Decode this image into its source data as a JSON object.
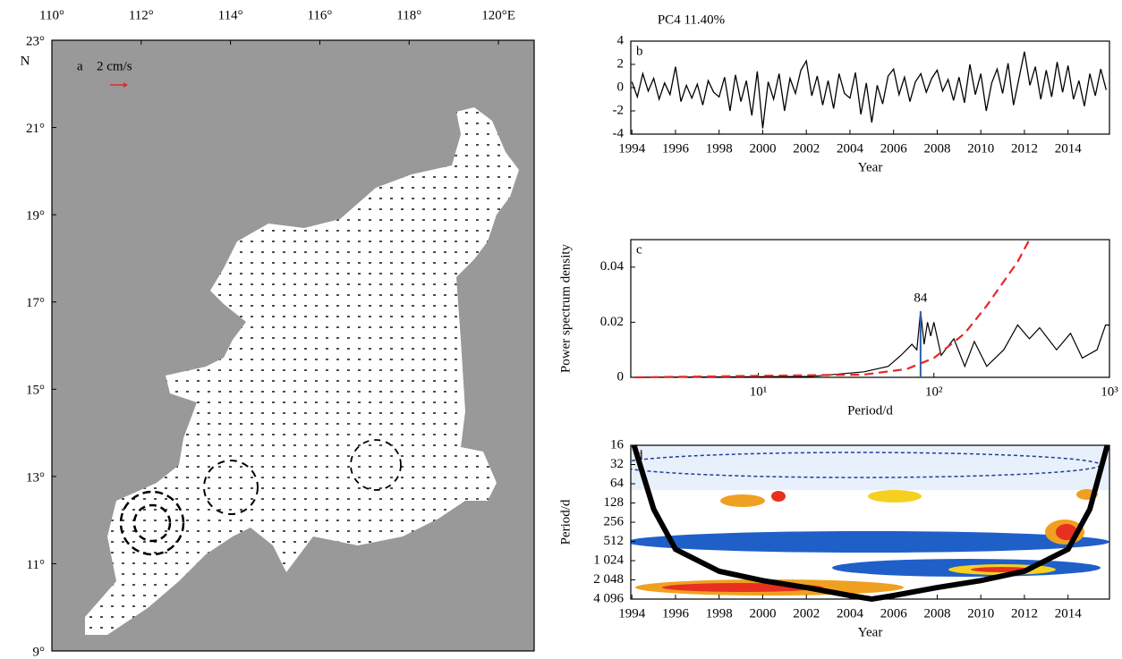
{
  "chart_data": [
    {
      "type": "map",
      "label": "a",
      "xlim": [
        110,
        120.8
      ],
      "ylim": [
        9,
        23
      ],
      "xticks": [
        {
          "value": 110,
          "label": "110°"
        },
        {
          "value": 112,
          "label": "112°"
        },
        {
          "value": 114,
          "label": "114°"
        },
        {
          "value": 116,
          "label": "116°"
        },
        {
          "value": 118,
          "label": "118°"
        },
        {
          "value": 120,
          "label": "120°E"
        }
      ],
      "yticks": [
        {
          "value": 23,
          "label": "23°"
        },
        {
          "value": 21,
          "label": "21°"
        },
        {
          "value": 19,
          "label": "19°"
        },
        {
          "value": 17,
          "label": "17°"
        },
        {
          "value": 15,
          "label": "15°"
        },
        {
          "value": 13,
          "label": "13°"
        },
        {
          "value": 11,
          "label": "11°"
        },
        {
          "value": 9,
          "label": "9°"
        }
      ],
      "y_hemisphere_label": "N",
      "scale_label": "2 cm/s",
      "scale_color": "#e8262a",
      "land_color": "#999999"
    },
    {
      "type": "line",
      "title": "PC4 11.40%",
      "label": "b",
      "x_label": "Year",
      "color": "#000000",
      "x": [
        1994,
        1994.25,
        1994.5,
        1994.75,
        1995,
        1995.25,
        1995.5,
        1995.75,
        1996,
        1996.25,
        1996.5,
        1996.75,
        1997,
        1997.25,
        1997.5,
        1997.75,
        1998,
        1998.25,
        1998.5,
        1998.75,
        1999,
        1999.25,
        1999.5,
        1999.75,
        2000,
        2000.25,
        2000.5,
        2000.75,
        2001,
        2001.25,
        2001.5,
        2001.75,
        2002,
        2002.25,
        2002.5,
        2002.75,
        2003,
        2003.25,
        2003.5,
        2003.75,
        2004,
        2004.25,
        2004.5,
        2004.75,
        2005,
        2005.25,
        2005.5,
        2005.75,
        2006,
        2006.25,
        2006.5,
        2006.75,
        2007,
        2007.25,
        2007.5,
        2007.75,
        2008,
        2008.25,
        2008.5,
        2008.75,
        2009,
        2009.25,
        2009.5,
        2009.75,
        2010,
        2010.25,
        2010.5,
        2010.75,
        2011,
        2011.25,
        2011.5,
        2011.75,
        2012,
        2012.25,
        2012.5,
        2012.75,
        2013,
        2013.25,
        2013.5,
        2013.75,
        2014,
        2014.25,
        2014.5,
        2014.75,
        2015,
        2015.25,
        2015.5,
        2015.75
      ],
      "values": [
        0.5,
        -0.8,
        1.2,
        -0.3,
        0.8,
        -1.0,
        0.4,
        -0.6,
        1.8,
        -1.2,
        0.2,
        -0.9,
        0.3,
        -1.5,
        0.6,
        -0.4,
        -0.8,
        0.9,
        -2.0,
        1.1,
        -1.2,
        0.6,
        -2.4,
        1.4,
        -3.5,
        0.5,
        -1.0,
        1.2,
        -2.0,
        0.8,
        -0.5,
        1.5,
        2.3,
        -0.7,
        1.0,
        -1.5,
        0.6,
        -1.8,
        1.2,
        -0.5,
        -0.9,
        1.3,
        -2.3,
        0.4,
        -3.0,
        0.2,
        -1.4,
        1.0,
        1.6,
        -0.6,
        0.9,
        -1.2,
        0.5,
        1.2,
        -0.4,
        0.8,
        1.5,
        -0.3,
        0.7,
        -1.1,
        0.9,
        -1.3,
        2.0,
        -0.6,
        1.2,
        -2.0,
        0.4,
        1.6,
        -0.5,
        2.1,
        -1.5,
        0.8,
        3.1,
        0.2,
        1.8,
        -1.0,
        1.5,
        -0.8,
        2.2,
        -0.4,
        1.9,
        -1.0,
        0.6,
        -1.6,
        1.2,
        -0.7,
        1.6,
        -0.2
      ],
      "xlim": [
        1993.95,
        2015.9
      ],
      "ylim": [
        -4,
        4
      ],
      "xticks": [
        1994,
        1996,
        1998,
        2000,
        2002,
        2004,
        2006,
        2008,
        2010,
        2012,
        2014
      ],
      "yticks": [
        -4,
        -2,
        0,
        2,
        4
      ]
    },
    {
      "type": "line",
      "label": "c",
      "x_label": "Period/d",
      "y_label": "Power spectrum density",
      "x_log": true,
      "xlim": [
        1.88,
        1000
      ],
      "ylim": [
        0,
        0.05
      ],
      "xticks": [
        {
          "value": 10,
          "label": "10¹"
        },
        {
          "value": 100,
          "label": "10²"
        },
        {
          "value": 1000,
          "label": "10³"
        }
      ],
      "yticks": [
        0,
        0.02,
        0.04
      ],
      "series": [
        {
          "color": "#000000",
          "x": [
            2,
            20,
            40,
            55,
            65,
            75,
            80,
            84,
            88,
            92,
            96,
            100,
            110,
            130,
            150,
            170,
            200,
            250,
            300,
            350,
            400,
            500,
            600,
            700,
            850,
            950,
            1000
          ],
          "values": [
            0,
            0.0003,
            0.002,
            0.004,
            0.008,
            0.012,
            0.01,
            0.024,
            0.012,
            0.02,
            0.015,
            0.02,
            0.008,
            0.014,
            0.004,
            0.013,
            0.004,
            0.01,
            0.019,
            0.014,
            0.018,
            0.01,
            0.016,
            0.007,
            0.01,
            0.019,
            0.019
          ]
        },
        {
          "color": "#e8262a",
          "dashed": true,
          "x": [
            2,
            40,
            70,
            100,
            150,
            200,
            300,
            350
          ],
          "values": [
            0,
            0.001,
            0.003,
            0.007,
            0.016,
            0.026,
            0.042,
            0.05
          ]
        }
      ],
      "annotations": [
        {
          "text": "84",
          "x": 84,
          "y": 0.024,
          "color": "#2f5fa8"
        }
      ]
    },
    {
      "type": "wavelet",
      "label": "d",
      "x_label": "Year",
      "y_label": "Period/d",
      "xlim": [
        1993.95,
        2015.9
      ],
      "ylim": [
        16,
        4096
      ],
      "y_log_base": 2,
      "y_inverted": true,
      "xticks": [
        1994,
        1996,
        1998,
        2000,
        2002,
        2004,
        2006,
        2008,
        2010,
        2012,
        2014
      ],
      "yticks": [
        16,
        32,
        64,
        128,
        256,
        512,
        {
          "value": 1024,
          "label": "1 024"
        },
        {
          "value": 2048,
          "label": "2 048"
        },
        {
          "value": 4096,
          "label": "4 096"
        }
      ],
      "cone_of_influence": {
        "color": "#000000",
        "x": [
          1994.1,
          1995,
          1996,
          1998,
          2000,
          2002,
          2004,
          2005,
          2006,
          2008,
          2010,
          2012,
          2014,
          2015,
          2015.8
        ],
        "values": [
          16,
          160,
          680,
          1500,
          2100,
          2700,
          3600,
          4096,
          3600,
          2700,
          2100,
          1500,
          680,
          160,
          16
        ]
      }
    }
  ]
}
